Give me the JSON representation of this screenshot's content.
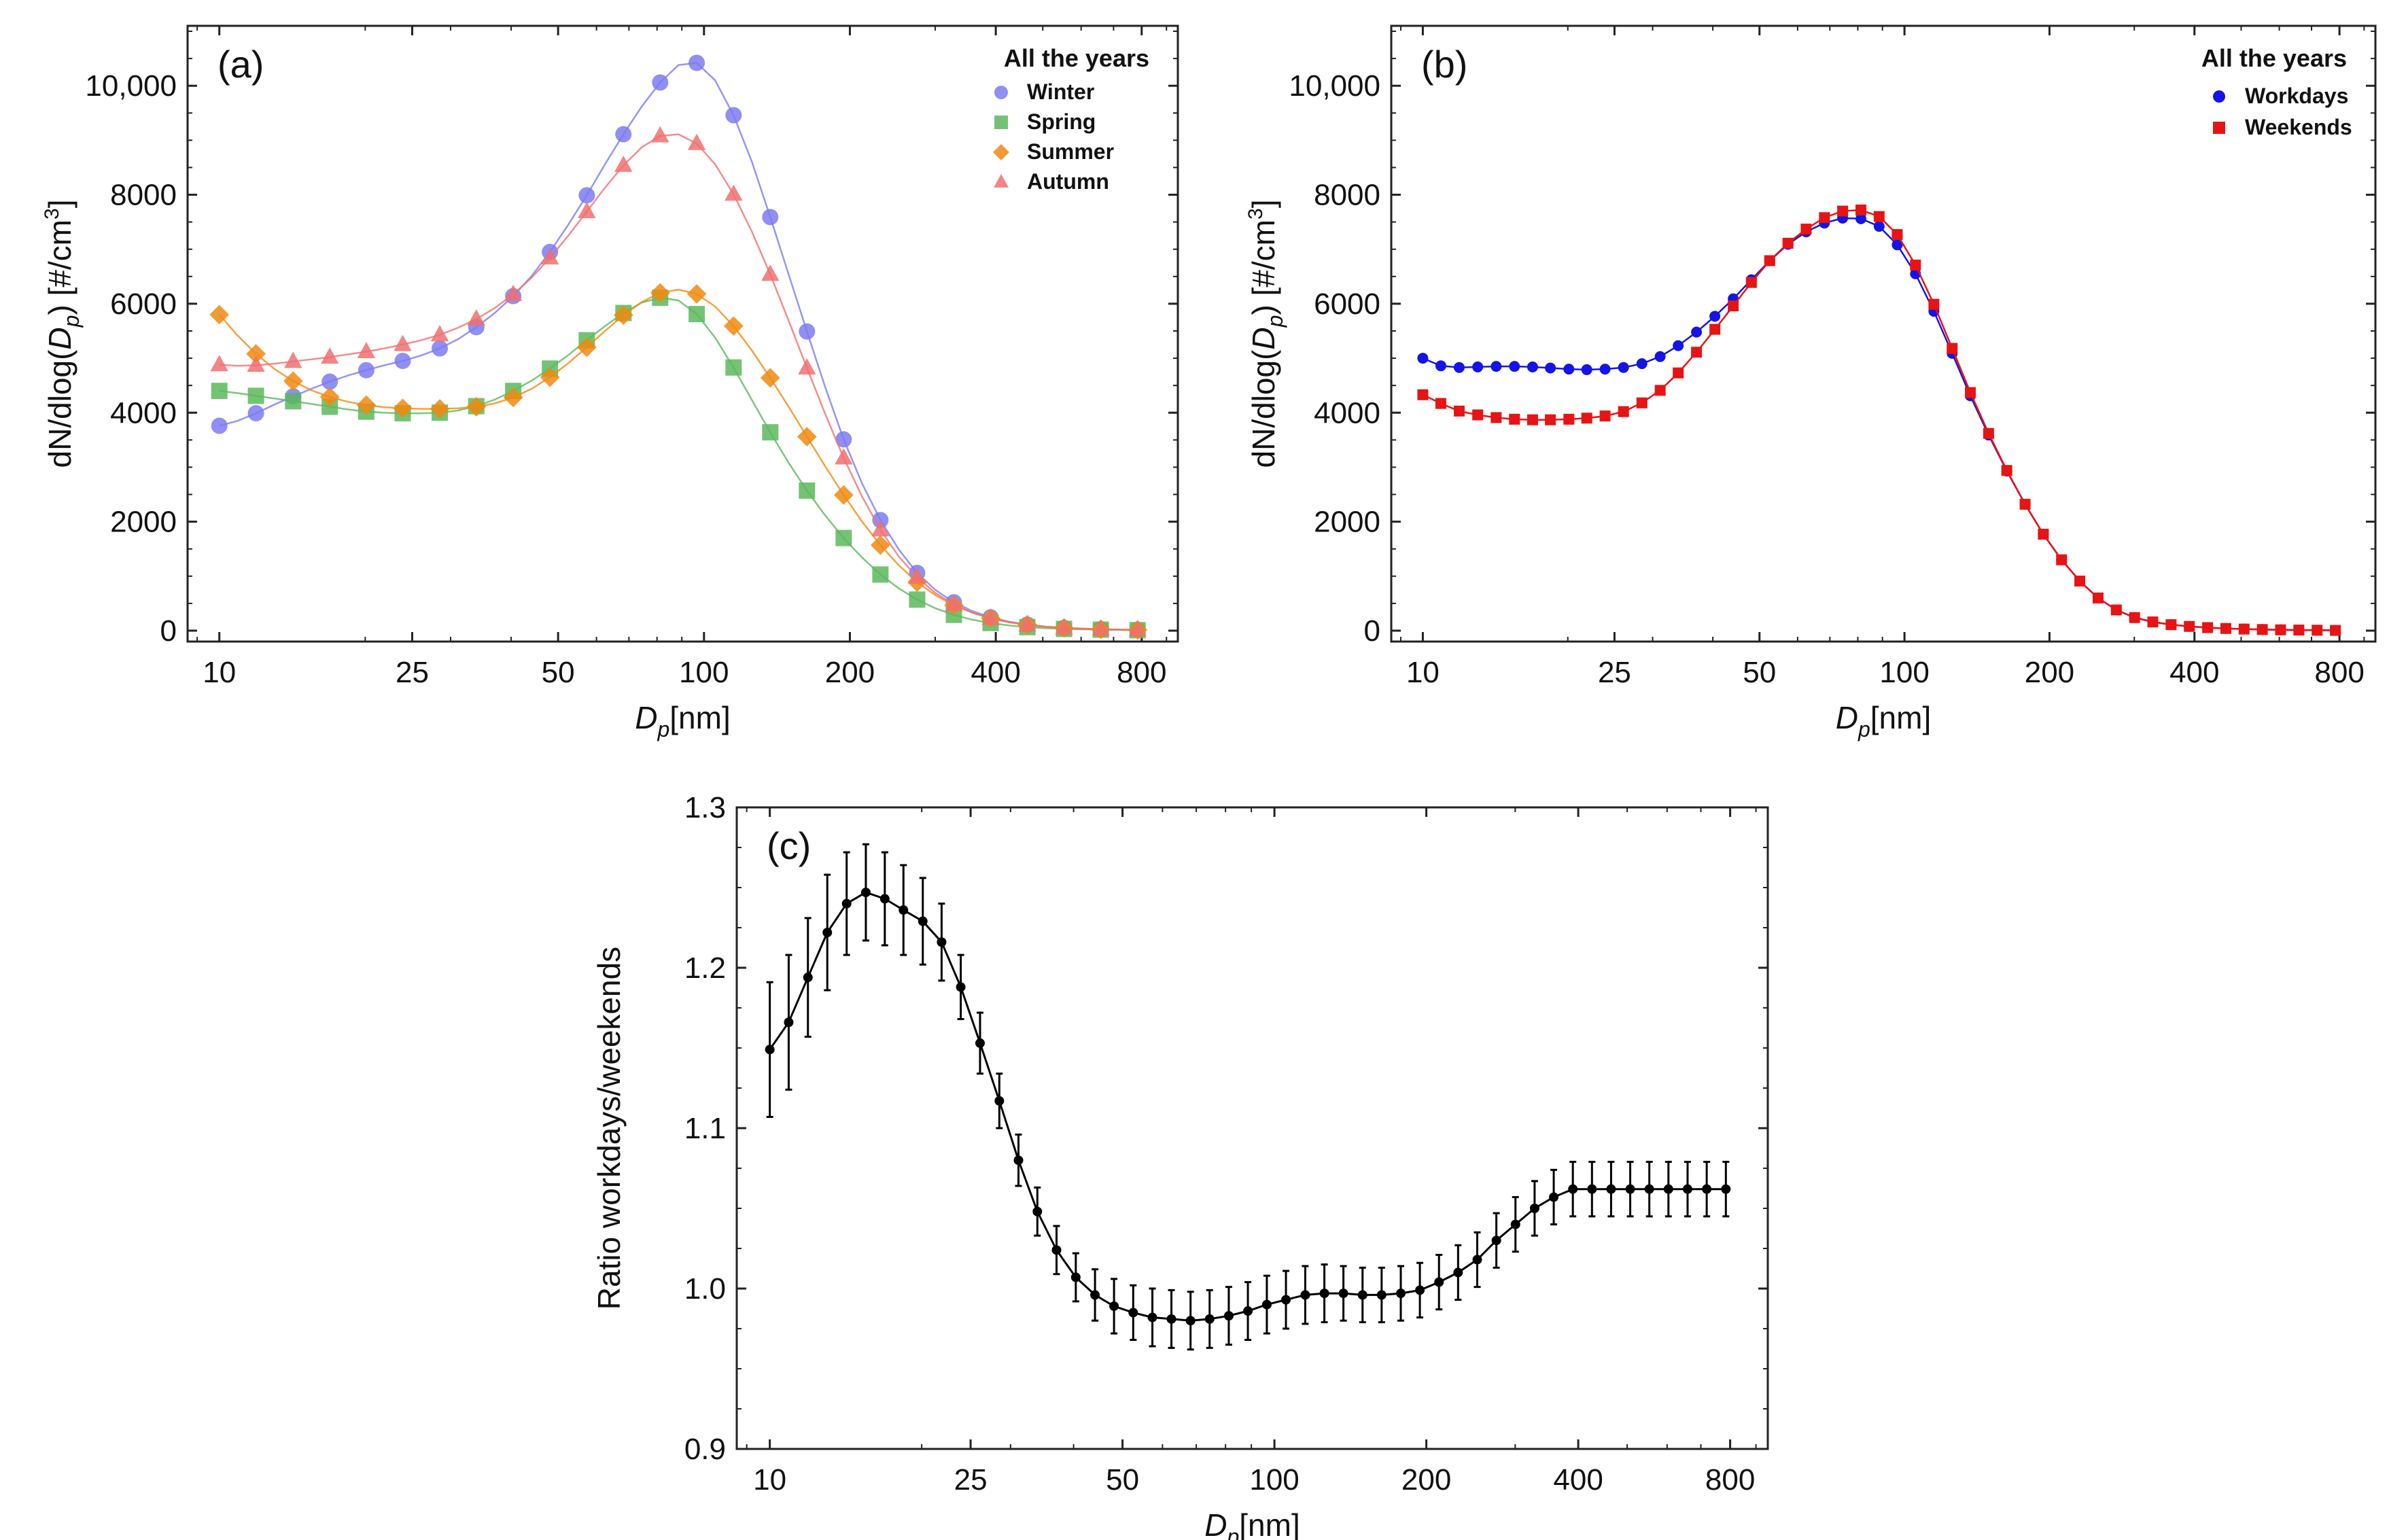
{
  "chart_data": [
    {
      "id": "a",
      "type": "line",
      "panel_label": "(a)",
      "xlabel_main": "D",
      "xlabel_sub": "p",
      "xlabel_unit": "[nm]",
      "ylabel": "dN/dlog(D_p) [#/cm^3]",
      "ylabel_parts": [
        "dN/dlog(",
        "D",
        "p",
        ") [",
        "#",
        "/cm",
        "3",
        "]"
      ],
      "x_scale": "log",
      "xlim": [
        8.6,
        950
      ],
      "ylim": [
        -200,
        11100
      ],
      "x_ticks": [
        10,
        25,
        50,
        100,
        200,
        400,
        800
      ],
      "x_tick_labels": [
        "10",
        "25",
        "50",
        "100",
        "200",
        "400",
        "800"
      ],
      "y_ticks": [
        0,
        2000,
        4000,
        6000,
        8000,
        10000
      ],
      "y_tick_labels": [
        "0",
        "2000",
        "4000",
        "6000",
        "8000",
        "10,000"
      ],
      "legend_title": "All the years",
      "legend_position": "top-right",
      "x": [
        10,
        10.9,
        11.9,
        13,
        14.2,
        15.5,
        16.9,
        18.4,
        20.1,
        21.9,
        23.9,
        26.1,
        28.5,
        31.1,
        33.9,
        37,
        40.4,
        44.1,
        48.1,
        52.5,
        57.3,
        62.5,
        68.2,
        74.4,
        81.2,
        88.6,
        96.6,
        105.4,
        115.1,
        125.6,
        137,
        149.5,
        163.1,
        178,
        194.2,
        211.9,
        231.2,
        252.3,
        275.3,
        300.4,
        327.8,
        357.7,
        390.3,
        425.9,
        464.7,
        507.1,
        553.3,
        603.7,
        658.8,
        718.9,
        784.6
      ],
      "marker_every": 2,
      "series": [
        {
          "name": "Winter",
          "color": "#7b7bf2",
          "marker": "circle",
          "values": [
            3760,
            3850,
            3990,
            4150,
            4300,
            4440,
            4570,
            4680,
            4780,
            4870,
            4950,
            5050,
            5180,
            5350,
            5570,
            5830,
            6140,
            6510,
            6950,
            7450,
            7990,
            8560,
            9110,
            9620,
            10060,
            10380,
            10420,
            10100,
            9460,
            8600,
            7590,
            6540,
            5490,
            4460,
            3510,
            2700,
            2030,
            1490,
            1060,
            745,
            520,
            360,
            245,
            165,
            110,
            75,
            52,
            38,
            28,
            20,
            14
          ]
        },
        {
          "name": "Spring",
          "color": "#5cb85c",
          "marker": "square",
          "values": [
            4400,
            4360,
            4310,
            4260,
            4210,
            4160,
            4110,
            4060,
            4020,
            4000,
            3990,
            3990,
            4000,
            4040,
            4120,
            4240,
            4400,
            4590,
            4810,
            5060,
            5330,
            5590,
            5830,
            6020,
            6110,
            6060,
            5810,
            5380,
            4830,
            4230,
            3640,
            3080,
            2570,
            2110,
            1700,
            1340,
            1030,
            775,
            570,
            410,
            290,
            200,
            140,
            95,
            65,
            45,
            32,
            24,
            18,
            13,
            9
          ]
        },
        {
          "name": "Summer",
          "color": "#f08a12",
          "marker": "diamond",
          "values": [
            5800,
            5420,
            5080,
            4800,
            4580,
            4410,
            4290,
            4200,
            4140,
            4100,
            4080,
            4070,
            4070,
            4080,
            4110,
            4170,
            4280,
            4440,
            4650,
            4910,
            5200,
            5500,
            5790,
            6030,
            6200,
            6260,
            6180,
            5950,
            5590,
            5140,
            4640,
            4110,
            3560,
            3010,
            2490,
            2000,
            1570,
            1200,
            890,
            650,
            465,
            330,
            230,
            158,
            108,
            73,
            50,
            35,
            25,
            18,
            13
          ]
        },
        {
          "name": "Autumn",
          "color": "#f07070",
          "marker": "triangle",
          "values": [
            4880,
            4860,
            4870,
            4900,
            4940,
            4980,
            5020,
            5070,
            5120,
            5180,
            5250,
            5330,
            5430,
            5560,
            5720,
            5920,
            6170,
            6480,
            6840,
            7250,
            7690,
            8130,
            8540,
            8870,
            9080,
            9110,
            8940,
            8560,
            8010,
            7320,
            6540,
            5690,
            4820,
            3970,
            3170,
            2460,
            1850,
            1360,
            980,
            690,
            480,
            330,
            225,
            152,
            104,
            71,
            49,
            35,
            25,
            18,
            13
          ]
        }
      ]
    },
    {
      "id": "b",
      "type": "line",
      "panel_label": "(b)",
      "xlabel_main": "D",
      "xlabel_sub": "p",
      "xlabel_unit": "[nm]",
      "ylabel": "dN/dlog(D_p) [#/cm^3]",
      "ylabel_parts": [
        "dN/dlog(",
        "D",
        "p",
        ") [",
        "#",
        "/cm",
        "3",
        "]"
      ],
      "x_scale": "log",
      "xlim": [
        8.6,
        950
      ],
      "ylim": [
        -200,
        11100
      ],
      "x_ticks": [
        10,
        25,
        50,
        100,
        200,
        400,
        800
      ],
      "x_tick_labels": [
        "10",
        "25",
        "50",
        "100",
        "200",
        "400",
        "800"
      ],
      "y_ticks": [
        0,
        2000,
        4000,
        6000,
        8000,
        10000
      ],
      "y_tick_labels": [
        "0",
        "2000",
        "4000",
        "6000",
        "8000",
        "10,000"
      ],
      "legend_title": "All the years",
      "legend_position": "top-right",
      "x": [
        10,
        10.9,
        11.9,
        13,
        14.2,
        15.5,
        16.9,
        18.4,
        20.1,
        21.9,
        23.9,
        26.1,
        28.5,
        31.1,
        33.9,
        37,
        40.4,
        44.1,
        48.1,
        52.5,
        57.3,
        62.5,
        68.2,
        74.4,
        81.2,
        88.6,
        96.6,
        105.4,
        115.1,
        125.6,
        137,
        149.5,
        163.1,
        178,
        194.2,
        211.9,
        231.2,
        252.3,
        275.3,
        300.4,
        327.8,
        357.7,
        390.3,
        425.9,
        464.7,
        507.1,
        553.3,
        603.7,
        658.8,
        718.9,
        784.6
      ],
      "marker_every": 1,
      "series": [
        {
          "name": "Workdays",
          "color": "#1414e6",
          "marker": "circle",
          "values": [
            5000,
            4860,
            4830,
            4840,
            4850,
            4850,
            4840,
            4820,
            4800,
            4790,
            4800,
            4830,
            4900,
            5030,
            5230,
            5480,
            5770,
            6090,
            6440,
            6790,
            7090,
            7320,
            7480,
            7570,
            7560,
            7420,
            7080,
            6550,
            5860,
            5090,
            4310,
            3590,
            2930,
            2320,
            1770,
            1300,
            910,
            600,
            380,
            240,
            160,
            110,
            78,
            56,
            40,
            29,
            21,
            15,
            11,
            8,
            5
          ]
        },
        {
          "name": "Weekends",
          "color": "#e61414",
          "marker": "square",
          "values": [
            4330,
            4170,
            4030,
            3960,
            3910,
            3880,
            3870,
            3870,
            3880,
            3900,
            3940,
            4020,
            4180,
            4410,
            4730,
            5110,
            5530,
            5960,
            6390,
            6790,
            7110,
            7370,
            7580,
            7700,
            7720,
            7600,
            7270,
            6710,
            5990,
            5180,
            4370,
            3620,
            2940,
            2320,
            1770,
            1300,
            910,
            600,
            380,
            240,
            160,
            110,
            78,
            56,
            40,
            29,
            21,
            15,
            11,
            8,
            5
          ]
        }
      ]
    },
    {
      "id": "c",
      "type": "line",
      "panel_label": "(c)",
      "xlabel_main": "D",
      "xlabel_sub": "p",
      "xlabel_unit": "[nm]",
      "ylabel": "Ratio workdays/weekends",
      "x_scale": "log",
      "xlim": [
        8.6,
        950
      ],
      "ylim": [
        0.9,
        1.3
      ],
      "x_ticks": [
        10,
        25,
        50,
        100,
        200,
        400,
        800
      ],
      "x_tick_labels": [
        "10",
        "25",
        "50",
        "100",
        "200",
        "400",
        "800"
      ],
      "y_ticks": [
        0.9,
        1.0,
        1.1,
        1.2,
        1.3
      ],
      "y_tick_labels": [
        "0.9",
        "1.0",
        "1.1",
        "1.2",
        "1.3"
      ],
      "x": [
        10,
        10.9,
        11.9,
        13,
        14.2,
        15.5,
        16.9,
        18.4,
        20.1,
        21.9,
        23.9,
        26.1,
        28.5,
        31.1,
        33.9,
        37,
        40.4,
        44.1,
        48.1,
        52.5,
        57.3,
        62.5,
        68.2,
        74.4,
        81.2,
        88.6,
        96.6,
        105.4,
        115.1,
        125.6,
        137,
        149.5,
        163.1,
        178,
        194.2,
        211.9,
        231.2,
        252.3,
        275.3,
        300.4,
        327.8,
        357.7,
        390.3,
        425.9,
        464.7,
        507.1,
        553.3,
        603.7,
        658.8,
        718.9,
        784.6
      ],
      "series": [
        {
          "name": "Ratio",
          "color": "#000000",
          "marker": "circle",
          "values": [
            1.149,
            1.166,
            1.194,
            1.222,
            1.24,
            1.247,
            1.243,
            1.236,
            1.229,
            1.216,
            1.188,
            1.153,
            1.117,
            1.08,
            1.048,
            1.024,
            1.007,
            0.996,
            0.989,
            0.985,
            0.982,
            0.981,
            0.98,
            0.981,
            0.983,
            0.986,
            0.99,
            0.993,
            0.996,
            0.997,
            0.997,
            0.996,
            0.996,
            0.997,
            0.999,
            1.004,
            1.01,
            1.018,
            1.03,
            1.04,
            1.05,
            1.057,
            1.062,
            1.062,
            1.062,
            1.062,
            1.062,
            1.062,
            1.062,
            1.062,
            1.062
          ],
          "errors": [
            0.042,
            0.042,
            0.037,
            0.036,
            0.032,
            0.03,
            0.029,
            0.028,
            0.027,
            0.024,
            0.02,
            0.019,
            0.017,
            0.016,
            0.015,
            0.015,
            0.015,
            0.016,
            0.017,
            0.017,
            0.018,
            0.018,
            0.018,
            0.018,
            0.018,
            0.018,
            0.018,
            0.018,
            0.018,
            0.018,
            0.017,
            0.017,
            0.017,
            0.017,
            0.017,
            0.017,
            0.017,
            0.017,
            0.017,
            0.017,
            0.017,
            0.017,
            0.017,
            0.017,
            0.017,
            0.017,
            0.017,
            0.017,
            0.017,
            0.017,
            0.017
          ]
        }
      ]
    }
  ]
}
